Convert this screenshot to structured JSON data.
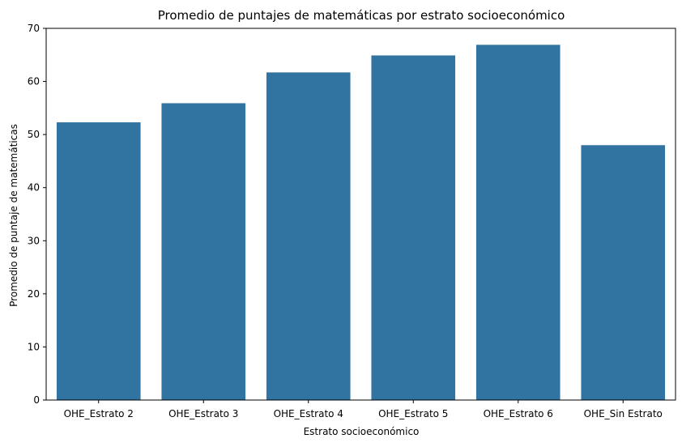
{
  "chart_data": {
    "type": "bar",
    "title": "Promedio de puntajes de matemáticas por estrato socioeconómico",
    "xlabel": "Estrato socioeconómico",
    "ylabel": "Promedio de puntaje de matemáticas",
    "categories": [
      "OHE_Estrato 2",
      "OHE_Estrato 3",
      "OHE_Estrato 4",
      "OHE_Estrato 5",
      "OHE_Estrato 6",
      "OHE_Sin Estrato"
    ],
    "values": [
      52.3,
      55.9,
      61.7,
      64.9,
      66.9,
      48.0
    ],
    "ylim": [
      0,
      70
    ],
    "yticks": [
      "0",
      "10",
      "20",
      "30",
      "40",
      "50",
      "60",
      "70"
    ],
    "grid": false,
    "colors": {
      "bar": "#3274a1"
    }
  }
}
